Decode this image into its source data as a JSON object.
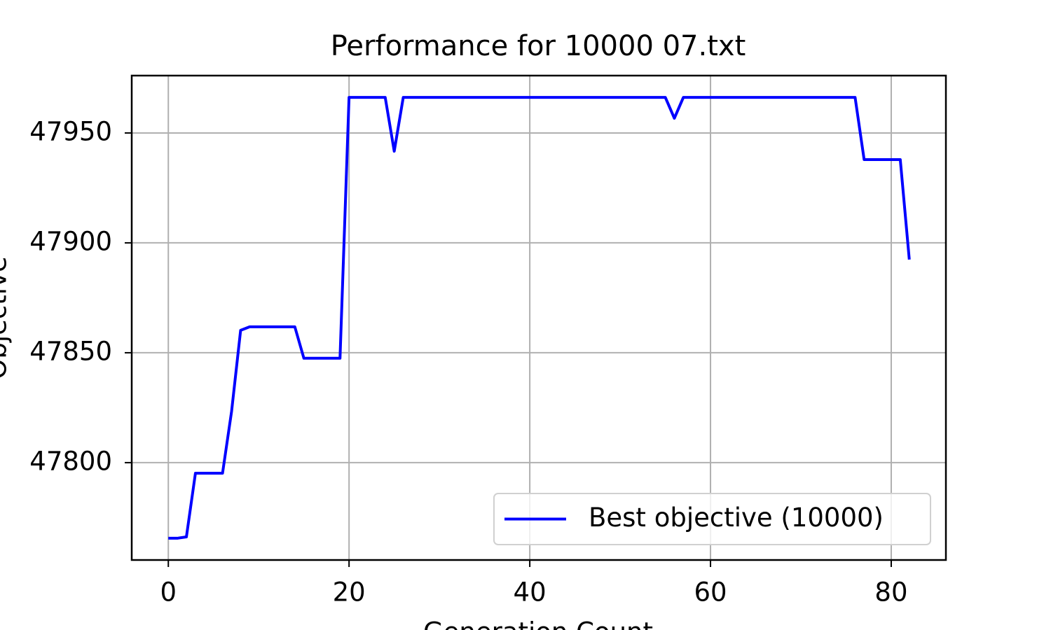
{
  "chart_data": {
    "type": "line",
    "title": "Performance for 10000 07.txt",
    "xlabel": "Generation Count",
    "ylabel": "Objective",
    "x": [
      0,
      1,
      2,
      3,
      4,
      5,
      6,
      7,
      8,
      9,
      10,
      11,
      12,
      13,
      14,
      15,
      16,
      17,
      18,
      19,
      20,
      21,
      22,
      23,
      24,
      25,
      26,
      27,
      28,
      29,
      30,
      31,
      32,
      33,
      34,
      35,
      36,
      37,
      38,
      39,
      40,
      41,
      42,
      43,
      44,
      45,
      46,
      47,
      48,
      49,
      50,
      51,
      52,
      53,
      54,
      55,
      56,
      57,
      58,
      59,
      60,
      61,
      62,
      63,
      64,
      65,
      66,
      67,
      68,
      69,
      70,
      71,
      72,
      73,
      74,
      75,
      76,
      77,
      78,
      79,
      80,
      81,
      82
    ],
    "series": [
      {
        "name": "Best objective (10000)",
        "color": "#0000ff",
        "values": [
          47765.6,
          47765.6,
          47766.2,
          47795.2,
          47795.2,
          47795.2,
          47795.2,
          47823.3,
          47860.2,
          47861.8,
          47861.8,
          47861.8,
          47861.8,
          47861.8,
          47861.8,
          47847.5,
          47847.5,
          47847.5,
          47847.5,
          47847.5,
          47966.2,
          47966.2,
          47966.2,
          47966.2,
          47966.2,
          47941.7,
          47966.2,
          47966.2,
          47966.2,
          47966.2,
          47966.2,
          47966.2,
          47966.2,
          47966.2,
          47966.2,
          47966.2,
          47966.2,
          47966.2,
          47966.2,
          47966.2,
          47966.2,
          47966.2,
          47966.2,
          47966.2,
          47966.2,
          47966.2,
          47966.2,
          47966.2,
          47966.2,
          47966.2,
          47966.2,
          47966.2,
          47966.2,
          47966.2,
          47966.2,
          47966.2,
          47956.7,
          47966.2,
          47966.2,
          47966.2,
          47966.2,
          47966.2,
          47966.2,
          47966.2,
          47966.2,
          47966.2,
          47966.2,
          47966.2,
          47966.2,
          47966.2,
          47966.2,
          47966.2,
          47966.2,
          47966.2,
          47966.2,
          47966.2,
          47966.2,
          47937.9,
          47937.9,
          47937.9,
          47937.9,
          47937.9,
          47892.4
        ]
      }
    ],
    "xlim": [
      -4.05,
      86.05
    ],
    "ylim": [
      47755.7,
      47976.1
    ],
    "xticks": [
      0,
      20,
      40,
      60,
      80
    ],
    "yticks": [
      47800,
      47850,
      47900,
      47950
    ],
    "grid": true,
    "legend": "lower right"
  }
}
